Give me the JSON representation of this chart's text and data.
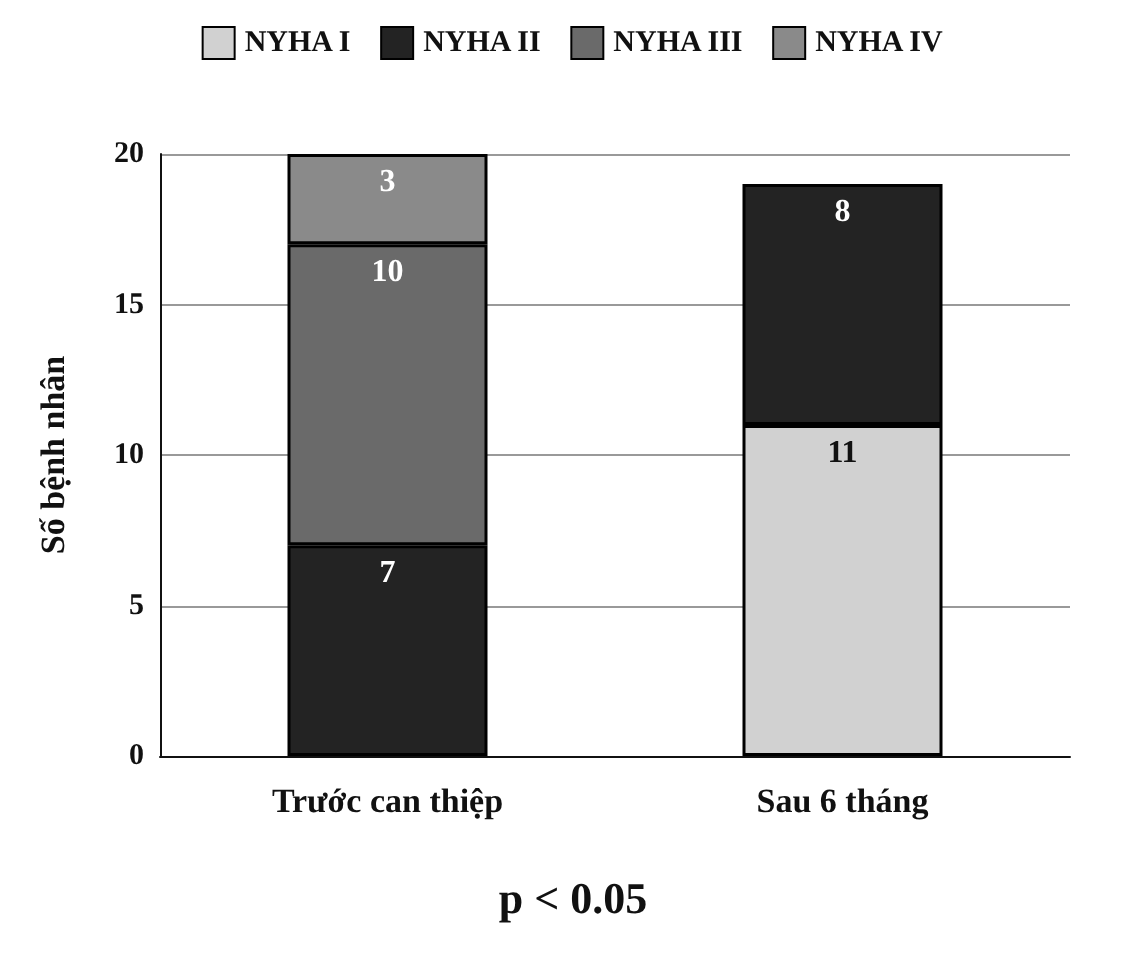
{
  "chart_data": {
    "type": "bar",
    "stacked": true,
    "categories": [
      "Trước can thiệp",
      "Sau 6 tháng"
    ],
    "series": [
      {
        "name": "NYHA I",
        "color": "#d1d1d1",
        "values": [
          null,
          11
        ]
      },
      {
        "name": "NYHA II",
        "color": "#232323",
        "values": [
          7,
          8
        ]
      },
      {
        "name": "NYHA III",
        "color": "#6a6a6a",
        "values": [
          10,
          null
        ]
      },
      {
        "name": "NYHA IV",
        "color": "#8a8a8a",
        "values": [
          3,
          null
        ]
      }
    ],
    "ylabel": "Số bệnh nhân",
    "ylim": [
      0,
      20
    ],
    "yticks": [
      0,
      5,
      10,
      15,
      20
    ],
    "grid": "y",
    "legend": "top",
    "data_labels": true,
    "annotations": [
      "p < 0.05"
    ]
  }
}
